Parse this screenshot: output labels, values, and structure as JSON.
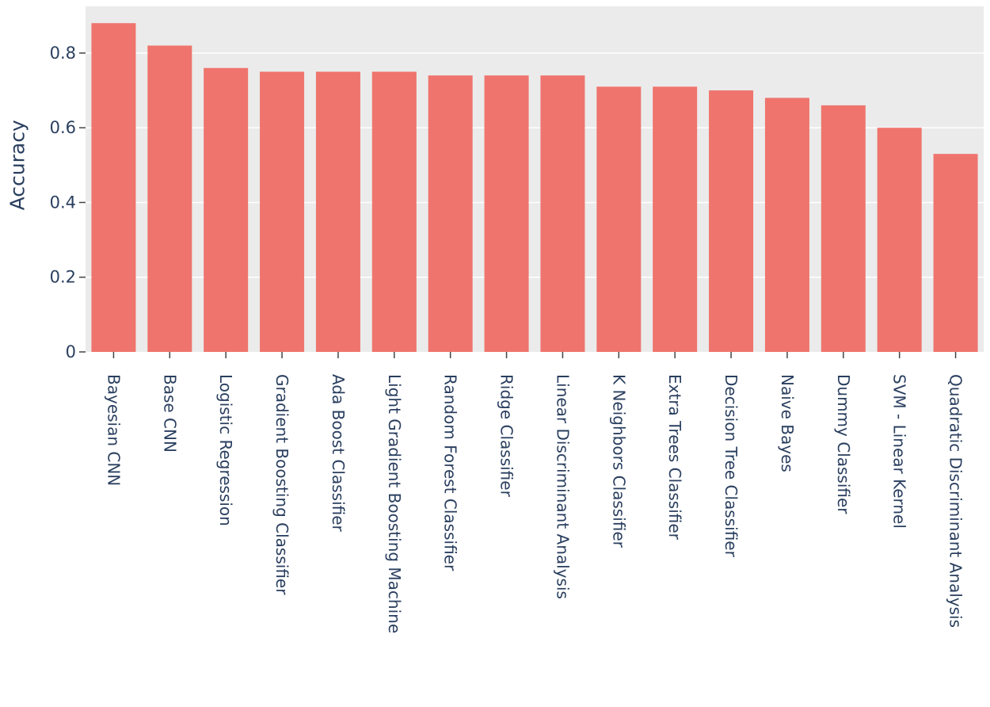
{
  "chart_data": {
    "type": "bar",
    "title": "",
    "xlabel": "",
    "ylabel": "Accuracy",
    "ylim": [
      0,
      0.925
    ],
    "yticks": [
      0,
      0.2,
      0.4,
      0.6,
      0.8
    ],
    "ytick_labels": [
      "0",
      "0.2",
      "0.4",
      "0.6",
      "0.8"
    ],
    "grid": true,
    "legend": "none",
    "colors": {
      "bar": "#ef746d",
      "plot_bg": "#ebebeb",
      "grid": "#ffffff",
      "text": "#2a3f5f"
    },
    "categories": [
      "Bayesian CNN",
      "Base CNN",
      "Logistic Regression",
      "Gradient Boosting Classifier",
      "Ada Boost Classifier",
      "Light Gradient Boosting Machine",
      "Random Forest Classifier",
      "Ridge Classifier",
      "Linear Discriminant Analysis",
      "K Neighbors Classifier",
      "Extra Trees Classifier",
      "Decision Tree Classifier",
      "Naive Bayes",
      "Dummy Classifier",
      "SVM - Linear Kernel",
      "Quadratic Discriminant Analysis"
    ],
    "values": [
      0.88,
      0.82,
      0.76,
      0.75,
      0.75,
      0.75,
      0.74,
      0.74,
      0.74,
      0.71,
      0.71,
      0.7,
      0.68,
      0.66,
      0.6,
      0.53
    ]
  }
}
